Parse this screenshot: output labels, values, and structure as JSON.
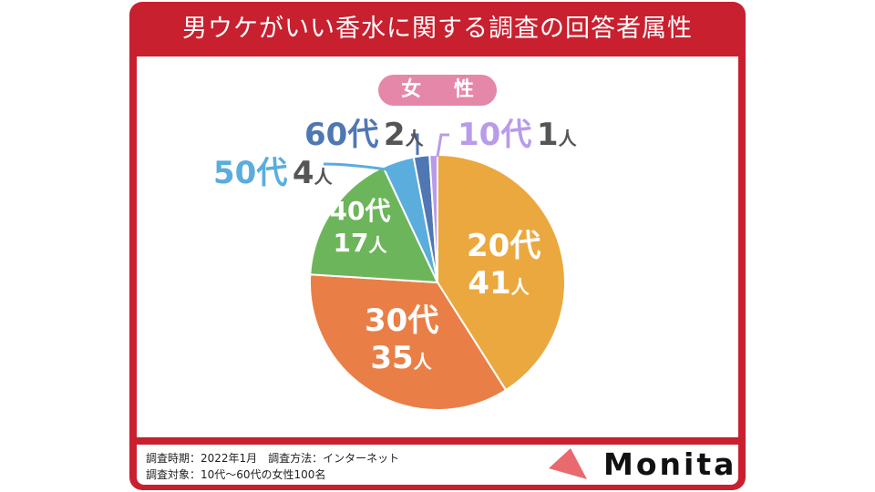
{
  "title": "男ウケがいい香水に関する調査の回答者属性",
  "badge": "女 性",
  "footer": {
    "line1": "調査時期：2022年1月　調査方法：インターネット",
    "line2": "調査対象：10代〜60代の女性100名"
  },
  "logo": "Monita",
  "chart_data": {
    "type": "pie",
    "title": "女性",
    "unit": "人",
    "start": "12 o'clock, clockwise",
    "slices": [
      {
        "label": "20代",
        "value": 41,
        "value_text": "41",
        "color": "#EBA83F"
      },
      {
        "label": "30代",
        "value": 35,
        "value_text": "35",
        "color": "#E97F47"
      },
      {
        "label": "40代",
        "value": 17,
        "value_text": "17",
        "color": "#6DB55B"
      },
      {
        "label": "50代",
        "value": 4,
        "value_text": "4",
        "color": "#5AADDC"
      },
      {
        "label": "60代",
        "value": 2,
        "value_text": "2",
        "color": "#4F77B3"
      },
      {
        "label": "10代",
        "value": 1,
        "value_text": "1",
        "color": "#B89BEB"
      }
    ]
  }
}
